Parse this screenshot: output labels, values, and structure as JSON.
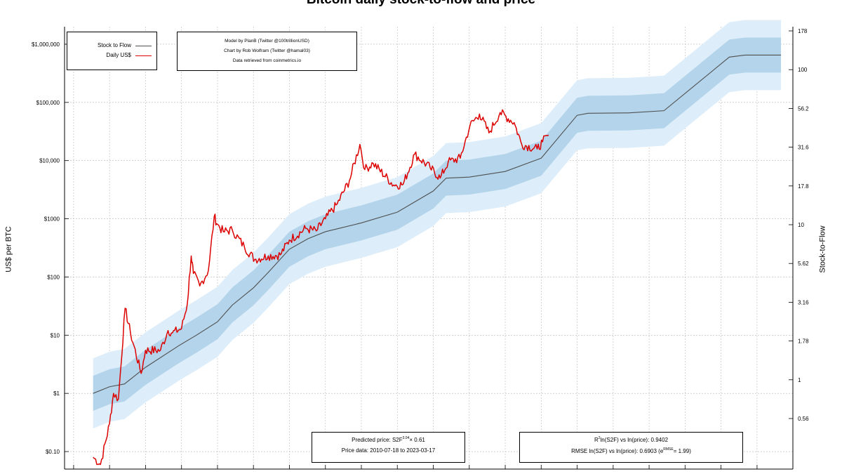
{
  "chart_data": {
    "type": "line",
    "title": "Bitcoin daily stock-to-flow and price",
    "ylabel": "US$ per BTC",
    "y2label": "Stock-to-Flow",
    "y_scale": "log",
    "y2_scale": "log",
    "ylim": [
      0.05,
      2000000
    ],
    "grid": true,
    "legend_position": "top-left",
    "y_ticks": [
      {
        "value": 1000000,
        "label": "$1,000,000"
      },
      {
        "value": 100000,
        "label": "$100,000"
      },
      {
        "value": 10000,
        "label": "$10,000"
      },
      {
        "value": 1000,
        "label": "$1000"
      },
      {
        "value": 100,
        "label": "$100"
      },
      {
        "value": 10,
        "label": "$10"
      },
      {
        "value": 1,
        "label": "$1"
      },
      {
        "value": 0.1,
        "label": "$0.10"
      }
    ],
    "y2_ticks": [
      "178",
      "100",
      "56.2",
      "31.6",
      "17.8",
      "10",
      "5.62",
      "3.16",
      "1.78",
      "1",
      "0.56"
    ],
    "colors": {
      "stock_to_flow": "#505050",
      "price": "#dd0000",
      "inner_band": "#b3d4ea",
      "outer_band": "#ddeefa",
      "grid": "#b8b8b8"
    },
    "series": [
      {
        "name": "Stock to Flow",
        "x": [
          "2010-07-18",
          "2011-01-01",
          "2011-06-01",
          "2012-01-01",
          "2012-11-28",
          "2013-06-01",
          "2014-01-01",
          "2014-06-01",
          "2015-01-01",
          "2015-06-01",
          "2016-01-01",
          "2016-07-09",
          "2017-01-01",
          "2018-01-01",
          "2019-01-01",
          "2020-01-01",
          "2020-05-11",
          "2021-01-01",
          "2022-01-01",
          "2023-01-01",
          "2024-01-01",
          "2024-04-20",
          "2025-06-01",
          "2026-06-01",
          "2028-03-25",
          "2028-09-01",
          "2029-09-01"
        ],
        "values": [
          1.0,
          1.3,
          1.45,
          2.8,
          6.5,
          10,
          17,
          33,
          65,
          120,
          300,
          455,
          600,
          850,
          1300,
          3000,
          5000,
          5200,
          6500,
          11000,
          60000,
          65000,
          66000,
          72000,
          600000,
          650000,
          650000
        ]
      },
      {
        "name": "Daily US$",
        "x": [
          "2010-07-18",
          "2010-10-01",
          "2011-01-01",
          "2011-02-10",
          "2011-04-01",
          "2011-06-08",
          "2011-08-01",
          "2011-11-18",
          "2012-01-01",
          "2012-06-01",
          "2012-08-17",
          "2012-10-01",
          "2013-01-01",
          "2013-03-01",
          "2013-04-09",
          "2013-05-01",
          "2013-07-05",
          "2013-10-01",
          "2013-11-29",
          "2014-01-01",
          "2014-03-01",
          "2014-06-01",
          "2014-10-01",
          "2015-01-14",
          "2015-06-01",
          "2015-10-01",
          "2016-01-01",
          "2016-06-15",
          "2016-10-01",
          "2017-01-01",
          "2017-05-01",
          "2017-09-01",
          "2017-12-17",
          "2018-02-05",
          "2018-05-01",
          "2018-11-25",
          "2019-03-01",
          "2019-06-26",
          "2019-12-01",
          "2020-03-12",
          "2020-06-01",
          "2020-10-01",
          "2021-01-08",
          "2021-04-14",
          "2021-07-20",
          "2021-11-10",
          "2022-04-01",
          "2022-06-18",
          "2022-11-21",
          "2023-01-15",
          "2023-03-17"
        ],
        "values": [
          0.08,
          0.06,
          0.3,
          1.0,
          0.8,
          29,
          11,
          2.2,
          5.5,
          5.5,
          12,
          11,
          13,
          35,
          230,
          115,
          70,
          130,
          1100,
          800,
          600,
          640,
          330,
          200,
          230,
          240,
          430,
          680,
          620,
          1000,
          1800,
          4500,
          19000,
          7000,
          9000,
          3800,
          3900,
          12900,
          7500,
          5000,
          9500,
          11000,
          40000,
          63000,
          30000,
          67000,
          45000,
          19000,
          15800,
          21000,
          27500
        ]
      }
    ],
    "legend": [
      "Stock to Flow",
      "Daily US$"
    ],
    "notes": {
      "credits": [
        "Model by PlanB (Twitter @100trillionUSD)",
        "Chart by Rob Wolfram (Twitter @hamal03)",
        "Data retrieved from coinmetrics.io"
      ],
      "predicted_prefix": "Predicted price: S2F",
      "predicted_exp": "3.04",
      "predicted_suffix": "× 0.61",
      "price_data": "Price data: 2010-07-18 to 2023-03-17",
      "r2_prefix": "R",
      "r2_sup": "2",
      "r2_rest": "ln(S2F) vs ln(price): 0.9402",
      "rmse_prefix": "RMSE ln(S2F) vs ln(price): 0.6903 (e",
      "rmse_sup": "RMSE",
      "rmse_suffix": "= 1.99)"
    }
  }
}
